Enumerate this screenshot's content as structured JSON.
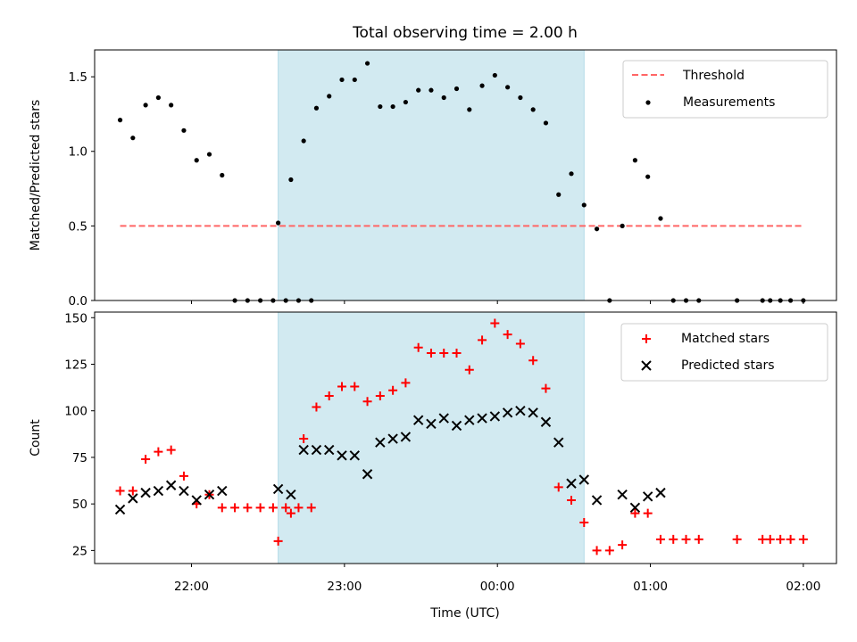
{
  "chart_data": {
    "title": "Total observing time = 2.00 h",
    "x_axis": {
      "label": "Time (UTC)",
      "ticks": [
        "22:00",
        "23:00",
        "00:00",
        "01:00",
        "02:00"
      ],
      "range": [
        "21:22",
        "02:13"
      ]
    },
    "shaded_interval": {
      "start": "22:34",
      "end": "00:34",
      "color": "#add8e6"
    },
    "colors": {
      "threshold": "#ff6666",
      "measurements": "#000000",
      "matched": "#ff0000",
      "predicted": "#000000",
      "shade": "#add8e6"
    },
    "panels": [
      {
        "type": "scatter",
        "ylabel": "Matched/Predicted stars",
        "ylim": [
          0,
          1.68
        ],
        "yticks": [
          "0.0",
          "0.5",
          "1.0",
          "1.5"
        ],
        "legend": {
          "placement": "top-right",
          "entries": [
            "Threshold",
            "Measurements"
          ]
        },
        "threshold": {
          "name": "Threshold",
          "value": 0.5,
          "from": "21:32",
          "to": "02:00"
        },
        "series": [
          {
            "name": "Measurements",
            "points": [
              [
                "21:32",
                1.21
              ],
              [
                "21:37",
                1.09
              ],
              [
                "21:42",
                1.31
              ],
              [
                "21:47",
                1.36
              ],
              [
                "21:52",
                1.31
              ],
              [
                "21:57",
                1.14
              ],
              [
                "22:02",
                0.94
              ],
              [
                "22:07",
                0.98
              ],
              [
                "22:12",
                0.84
              ],
              [
                "22:17",
                0.0
              ],
              [
                "22:22",
                0.0
              ],
              [
                "22:27",
                0.0
              ],
              [
                "22:32",
                0.0
              ],
              [
                "22:37",
                0.0
              ],
              [
                "22:42",
                0.0
              ],
              [
                "22:47",
                0.0
              ],
              [
                "22:34",
                0.52
              ],
              [
                "22:39",
                0.81
              ],
              [
                "22:44",
                1.07
              ],
              [
                "22:49",
                1.29
              ],
              [
                "22:54",
                1.37
              ],
              [
                "22:59",
                1.48
              ],
              [
                "23:04",
                1.48
              ],
              [
                "23:09",
                1.59
              ],
              [
                "23:14",
                1.3
              ],
              [
                "23:19",
                1.3
              ],
              [
                "23:24",
                1.33
              ],
              [
                "23:29",
                1.41
              ],
              [
                "23:34",
                1.41
              ],
              [
                "23:39",
                1.36
              ],
              [
                "23:44",
                1.42
              ],
              [
                "23:49",
                1.28
              ],
              [
                "23:54",
                1.44
              ],
              [
                "23:59",
                1.51
              ],
              [
                "00:04",
                1.43
              ],
              [
                "00:09",
                1.36
              ],
              [
                "00:14",
                1.28
              ],
              [
                "00:19",
                1.19
              ],
              [
                "00:24",
                0.71
              ],
              [
                "00:29",
                0.85
              ],
              [
                "00:34",
                0.64
              ],
              [
                "00:39",
                0.48
              ],
              [
                "00:44",
                0.0
              ],
              [
                "00:49",
                0.5
              ],
              [
                "00:54",
                0.94
              ],
              [
                "00:59",
                0.83
              ],
              [
                "01:04",
                0.55
              ],
              [
                "01:09",
                0.0
              ],
              [
                "01:14",
                0.0
              ],
              [
                "01:19",
                0.0
              ],
              [
                "01:34",
                0.0
              ],
              [
                "01:44",
                0.0
              ],
              [
                "01:47",
                0.0
              ],
              [
                "01:51",
                0.0
              ],
              [
                "01:55",
                0.0
              ],
              [
                "02:00",
                0.0
              ]
            ]
          }
        ]
      },
      {
        "type": "scatter",
        "ylabel": "Count",
        "ylim": [
          18,
          153
        ],
        "yticks": [
          "25",
          "50",
          "75",
          "100",
          "125",
          "150"
        ],
        "legend": {
          "placement": "top-right",
          "entries": [
            "Matched stars",
            "Predicted stars"
          ]
        },
        "series": [
          {
            "name": "Matched stars",
            "marker": "+",
            "points": [
              [
                "21:32",
                57
              ],
              [
                "21:37",
                57
              ],
              [
                "21:42",
                74
              ],
              [
                "21:47",
                78
              ],
              [
                "21:52",
                79
              ],
              [
                "21:57",
                65
              ],
              [
                "22:02",
                50
              ],
              [
                "22:07",
                55
              ],
              [
                "22:12",
                48
              ],
              [
                "22:17",
                48
              ],
              [
                "22:22",
                48
              ],
              [
                "22:27",
                48
              ],
              [
                "22:32",
                48
              ],
              [
                "22:37",
                48
              ],
              [
                "22:42",
                48
              ],
              [
                "22:47",
                48
              ],
              [
                "22:34",
                30
              ],
              [
                "22:39",
                45
              ],
              [
                "22:44",
                85
              ],
              [
                "22:49",
                102
              ],
              [
                "22:54",
                108
              ],
              [
                "22:59",
                113
              ],
              [
                "23:04",
                113
              ],
              [
                "23:09",
                105
              ],
              [
                "23:14",
                108
              ],
              [
                "23:19",
                111
              ],
              [
                "23:24",
                115
              ],
              [
                "23:29",
                134
              ],
              [
                "23:34",
                131
              ],
              [
                "23:39",
                131
              ],
              [
                "23:44",
                131
              ],
              [
                "23:49",
                122
              ],
              [
                "23:54",
                138
              ],
              [
                "23:59",
                147
              ],
              [
                "00:04",
                141
              ],
              [
                "00:09",
                136
              ],
              [
                "00:14",
                127
              ],
              [
                "00:19",
                112
              ],
              [
                "00:24",
                59
              ],
              [
                "00:29",
                52
              ],
              [
                "00:34",
                40
              ],
              [
                "00:39",
                25
              ],
              [
                "00:44",
                25
              ],
              [
                "00:49",
                28
              ],
              [
                "00:54",
                45
              ],
              [
                "00:59",
                45
              ],
              [
                "01:04",
                31
              ],
              [
                "01:09",
                31
              ],
              [
                "01:14",
                31
              ],
              [
                "01:19",
                31
              ],
              [
                "01:34",
                31
              ],
              [
                "01:44",
                31
              ],
              [
                "01:47",
                31
              ],
              [
                "01:51",
                31
              ],
              [
                "01:55",
                31
              ],
              [
                "02:00",
                31
              ]
            ]
          },
          {
            "name": "Predicted stars",
            "marker": "x",
            "points": [
              [
                "21:32",
                47
              ],
              [
                "21:37",
                53
              ],
              [
                "21:42",
                56
              ],
              [
                "21:47",
                57
              ],
              [
                "21:52",
                60
              ],
              [
                "21:57",
                57
              ],
              [
                "22:02",
                52
              ],
              [
                "22:07",
                55
              ],
              [
                "22:12",
                57
              ],
              [
                "22:34",
                58
              ],
              [
                "22:39",
                55
              ],
              [
                "22:44",
                79
              ],
              [
                "22:49",
                79
              ],
              [
                "22:54",
                79
              ],
              [
                "22:59",
                76
              ],
              [
                "23:04",
                76
              ],
              [
                "23:09",
                66
              ],
              [
                "23:14",
                83
              ],
              [
                "23:19",
                85
              ],
              [
                "23:24",
                86
              ],
              [
                "23:29",
                95
              ],
              [
                "23:34",
                93
              ],
              [
                "23:39",
                96
              ],
              [
                "23:44",
                92
              ],
              [
                "23:49",
                95
              ],
              [
                "23:54",
                96
              ],
              [
                "23:59",
                97
              ],
              [
                "00:04",
                99
              ],
              [
                "00:09",
                100
              ],
              [
                "00:14",
                99
              ],
              [
                "00:19",
                94
              ],
              [
                "00:24",
                83
              ],
              [
                "00:29",
                61
              ],
              [
                "00:34",
                63
              ],
              [
                "00:39",
                52
              ],
              [
                "00:49",
                55
              ],
              [
                "00:54",
                48
              ],
              [
                "00:59",
                54
              ],
              [
                "01:04",
                56
              ]
            ]
          }
        ]
      }
    ]
  }
}
